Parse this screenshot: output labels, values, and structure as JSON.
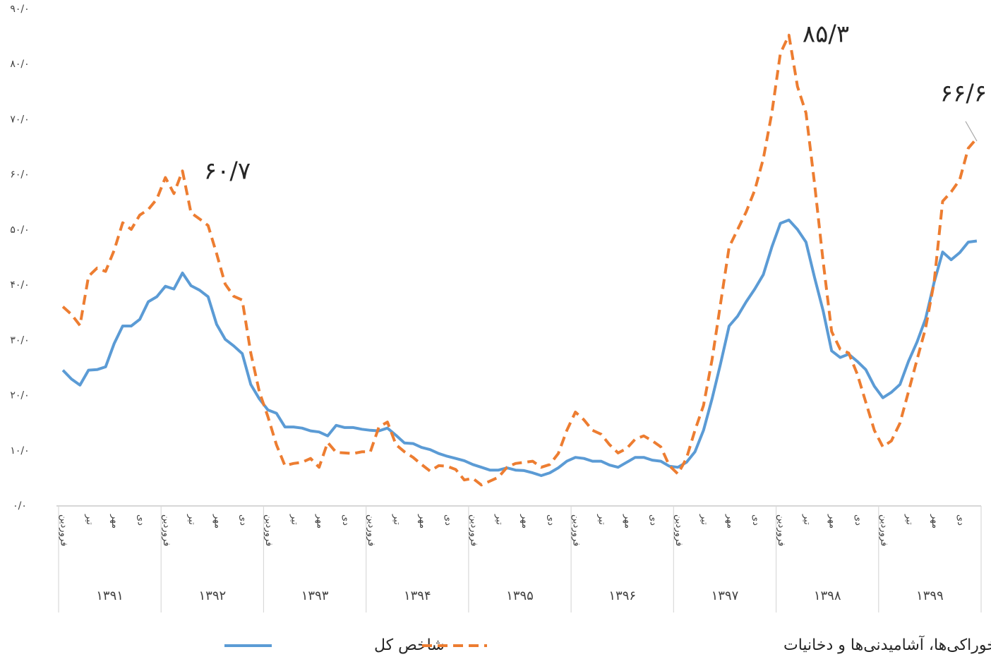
{
  "chart_data": {
    "type": "line",
    "categories": [
      "فروردین",
      null,
      null,
      "تیر",
      null,
      null,
      "مهر",
      null,
      null,
      "دی",
      null,
      null,
      "فروردین",
      null,
      null,
      "تیر",
      null,
      null,
      "مهر",
      null,
      null,
      "دی",
      null,
      null,
      "فروردین",
      null,
      null,
      "تیر",
      null,
      null,
      "مهر",
      null,
      null,
      "دی",
      null,
      null,
      "فروردین",
      null,
      null,
      "تیر",
      null,
      null,
      "مهر",
      null,
      null,
      "دی",
      null,
      null,
      "فروردین",
      null,
      null,
      "تیر",
      null,
      null,
      "مهر",
      null,
      null,
      "دی",
      null,
      null,
      "فروردین",
      null,
      null,
      "تیر",
      null,
      null,
      "مهر",
      null,
      null,
      "دی",
      null,
      null,
      "فروردین",
      null,
      null,
      "تیر",
      null,
      null,
      "مهر",
      null,
      null,
      "دی",
      null,
      null,
      "فروردین",
      null,
      null,
      "تیر",
      null,
      null,
      "مهر",
      null,
      null,
      "دی",
      null,
      null,
      "فروردین",
      null,
      null,
      "تیر",
      null,
      null,
      "مهر",
      null,
      null,
      "دی",
      null,
      null
    ],
    "years": [
      "۱۳۹۱",
      "۱۳۹۲",
      "۱۳۹۳",
      "۱۳۹۴",
      "۱۳۹۵",
      "۱۳۹۶",
      "۱۳۹۷",
      "۱۳۹۸",
      "۱۳۹۹"
    ],
    "series": [
      {
        "name": "شاخص کل",
        "color": "#5b9bd5",
        "dash": false,
        "values": [
          24.6,
          23,
          21.9,
          24.6,
          24.7,
          25.2,
          29.4,
          32.6,
          32.6,
          33.8,
          37,
          37.9,
          39.8,
          39.3,
          42.2,
          39.9,
          39.1,
          37.9,
          32.9,
          30.2,
          29,
          27.6,
          22,
          19.4,
          17.4,
          16.8,
          14.3,
          14.3,
          14.1,
          13.6,
          13.4,
          12.7,
          14.6,
          14.2,
          14.2,
          13.9,
          13.7,
          13.6,
          14.1,
          12.8,
          11.4,
          11.3,
          10.6,
          10.2,
          9.5,
          9,
          8.6,
          8.2,
          7.5,
          7,
          6.5,
          6.5,
          6.9,
          6.5,
          6.4,
          6,
          5.5,
          6,
          6.9,
          8.1,
          8.8,
          8.6,
          8.1,
          8.1,
          7.4,
          7,
          7.9,
          8.8,
          8.8,
          8.3,
          8.1,
          7.2,
          7,
          7.9,
          9.8,
          13.7,
          19.4,
          25.8,
          32.6,
          34.4,
          37,
          39.3,
          41.9,
          46.9,
          51.2,
          51.8,
          50.1,
          47.8,
          41.4,
          35.4,
          28.1,
          26.9,
          27.5,
          26.2,
          24.7,
          21.7,
          19.6,
          20.6,
          22,
          26.2,
          29.7,
          33.9,
          40.5,
          46,
          44.6,
          45.9,
          47.8,
          48
        ]
      },
      {
        "name": "خوراکی‌ها، آشامیدنی‌ها و دخانیات",
        "color": "#ed7d31",
        "dash": true,
        "values": [
          36.1,
          34.7,
          32.7,
          41.6,
          43.1,
          42.5,
          46.3,
          51.3,
          50.1,
          52.7,
          53.7,
          55.6,
          59.5,
          56.6,
          60.7,
          53.1,
          52,
          50.8,
          45.7,
          40.2,
          38,
          37.3,
          27.7,
          20.7,
          16.2,
          11.1,
          7.3,
          7.7,
          7.9,
          8.6,
          7,
          11.5,
          9.7,
          9.6,
          9.5,
          9.8,
          9.8,
          14.3,
          15.2,
          11.1,
          9.8,
          8.8,
          7.5,
          6.3,
          7.3,
          7.2,
          6.6,
          4.7,
          5,
          3.8,
          4.5,
          5.2,
          7,
          7.7,
          7.9,
          8.1,
          7,
          7.5,
          9.5,
          13.7,
          17,
          15.6,
          13.7,
          13,
          11.1,
          9.6,
          10.4,
          12.1,
          12.7,
          11.8,
          10.7,
          7.3,
          5.8,
          8.6,
          13.7,
          18.2,
          26.5,
          36.7,
          46.9,
          50.1,
          53.3,
          57.2,
          62.9,
          71.2,
          82,
          85.3,
          76,
          71.2,
          58.4,
          44.4,
          31.6,
          28.4,
          27.7,
          23.9,
          18.8,
          13.7,
          10.7,
          11.8,
          15,
          20.7,
          26.5,
          32.2,
          40.5,
          55.2,
          56.9,
          59.1,
          64.8,
          66.6
        ]
      }
    ],
    "annotations": [
      "۶۰/۷",
      "۸۵/۳",
      "۶۶/۶"
    ],
    "ylim": [
      0,
      90
    ],
    "yticks": [
      {
        "value": 0,
        "label": "۰/۰"
      },
      {
        "value": 10,
        "label": "۱۰/۰"
      },
      {
        "value": 20,
        "label": "۲۰/۰"
      },
      {
        "value": 30,
        "label": "۳۰/۰"
      },
      {
        "value": 40,
        "label": "۴۰/۰"
      },
      {
        "value": 50,
        "label": "۵۰/۰"
      },
      {
        "value": 60,
        "label": "۶۰/۰"
      },
      {
        "value": 70,
        "label": "۷۰/۰"
      },
      {
        "value": 80,
        "label": "۸۰/۰"
      },
      {
        "value": 90,
        "label": "۹۰/۰"
      }
    ],
    "grid": false,
    "legend": "bottom"
  }
}
